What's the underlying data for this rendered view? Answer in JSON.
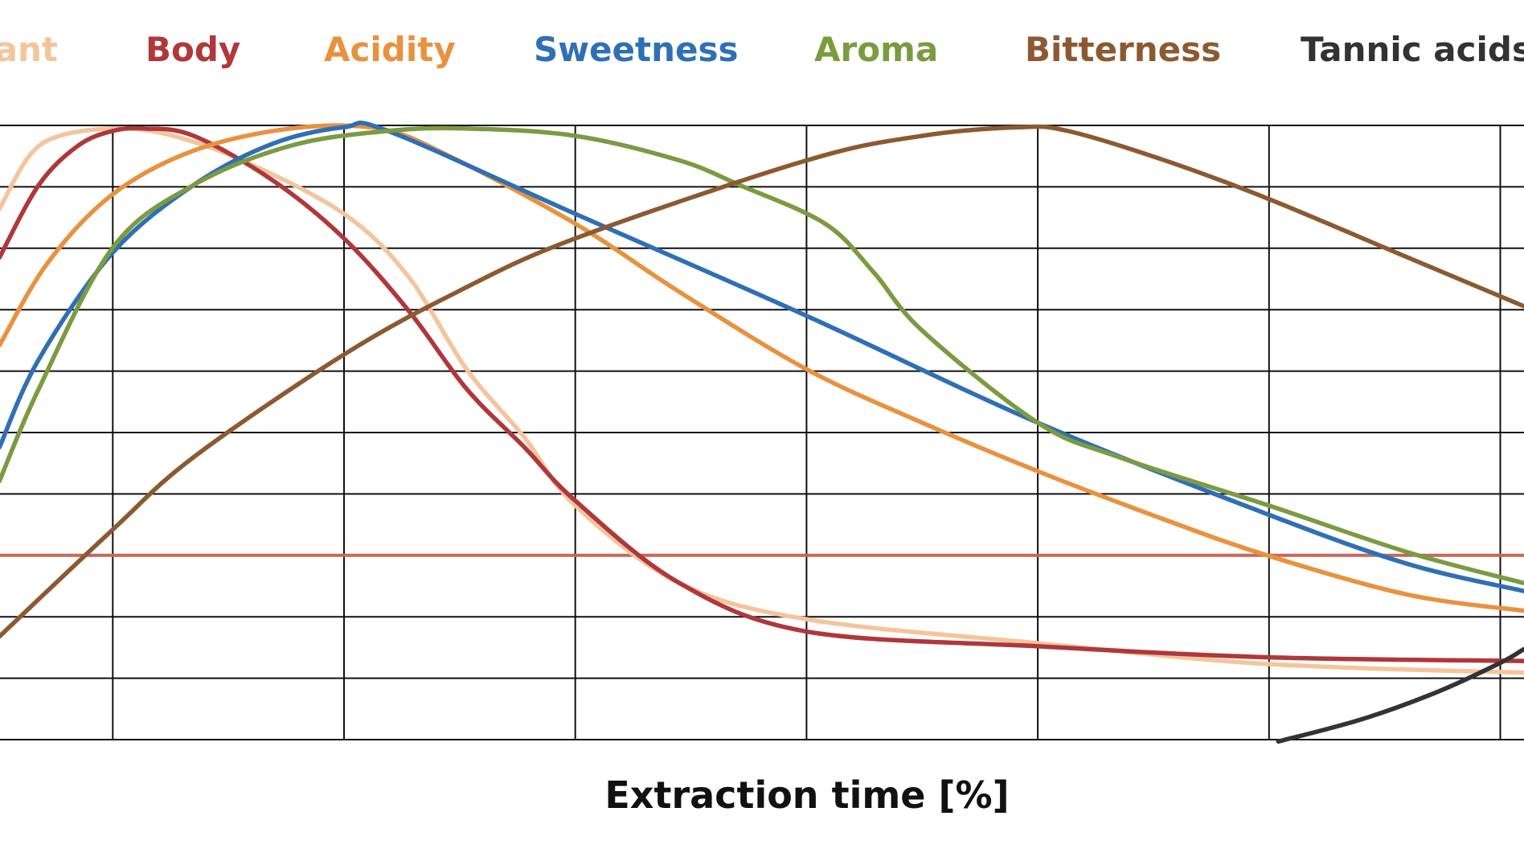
{
  "chart_data": {
    "type": "line",
    "title": "",
    "xlabel": "Extraction time [%]",
    "ylabel": "",
    "xlim": [
      5.1,
      71.0
    ],
    "ylim": [
      0,
      100
    ],
    "grid": true,
    "legend_placement": "top",
    "reference_line": {
      "y": 30,
      "color": "#c4695d"
    },
    "series": [
      {
        "name": "Fragrant",
        "color": "#f4c59c",
        "points": [
          [
            5.1,
            86.4
          ],
          [
            6.4,
            95.1
          ],
          [
            7.7,
            98.3
          ],
          [
            10,
            99.5
          ],
          [
            12.3,
            98.6
          ],
          [
            15.6,
            94.3
          ],
          [
            20,
            85.6
          ],
          [
            22.8,
            75.3
          ],
          [
            25.3,
            60.3
          ],
          [
            27.8,
            49.2
          ],
          [
            30,
            38.1
          ],
          [
            34.5,
            25.5
          ],
          [
            40,
            19.6
          ],
          [
            50,
            15.7
          ],
          [
            60,
            12.3
          ],
          [
            71,
            10.9
          ]
        ]
      },
      {
        "name": "Body",
        "color": "#b0373a",
        "points": [
          [
            5.1,
            78.5
          ],
          [
            6.8,
            90.3
          ],
          [
            8.5,
            96.7
          ],
          [
            10,
            99.1
          ],
          [
            11.4,
            99.5
          ],
          [
            13.5,
            98.3
          ],
          [
            16.9,
            91.1
          ],
          [
            20,
            81.6
          ],
          [
            22.8,
            69.8
          ],
          [
            25.3,
            57.1
          ],
          [
            27.8,
            47.6
          ],
          [
            30,
            38.9
          ],
          [
            34.5,
            25.5
          ],
          [
            40,
            17.6
          ],
          [
            50,
            15.2
          ],
          [
            60,
            13.4
          ],
          [
            71,
            12.8
          ]
        ]
      },
      {
        "name": "Acidity",
        "color": "#e8923f",
        "points": [
          [
            5.1,
            64.2
          ],
          [
            7.2,
            77.7
          ],
          [
            10,
            88.8
          ],
          [
            13.5,
            95.9
          ],
          [
            17.7,
            99.5
          ],
          [
            21.5,
            99.5
          ],
          [
            24.5,
            95.1
          ],
          [
            30,
            84.0
          ],
          [
            34.5,
            72.9
          ],
          [
            40,
            60.3
          ],
          [
            45,
            51.6
          ],
          [
            50,
            43.7
          ],
          [
            55.5,
            35.8
          ],
          [
            60,
            29.9
          ],
          [
            66,
            23.6
          ],
          [
            71,
            21.0
          ]
        ]
      },
      {
        "name": "Sweetness",
        "color": "#2f6fb6",
        "points": [
          [
            5.1,
            47.6
          ],
          [
            6.8,
            61.9
          ],
          [
            10,
            79.3
          ],
          [
            13.5,
            90.3
          ],
          [
            16.9,
            97.0
          ],
          [
            20,
            99.7
          ],
          [
            21.9,
            99.1
          ],
          [
            30,
            85.6
          ],
          [
            40,
            69.0
          ],
          [
            50,
            51.6
          ],
          [
            60,
            36.6
          ],
          [
            66,
            28.6
          ],
          [
            71,
            24.2
          ]
        ]
      },
      {
        "name": "Aroma",
        "color": "#7b9b41",
        "points": [
          [
            5.1,
            42.1
          ],
          [
            6.8,
            57.1
          ],
          [
            10,
            80.1
          ],
          [
            13.5,
            90.3
          ],
          [
            17.7,
            96.7
          ],
          [
            21.9,
            99.1
          ],
          [
            25.3,
            99.5
          ],
          [
            30,
            98.3
          ],
          [
            34.5,
            94.3
          ],
          [
            37.1,
            90.3
          ],
          [
            40.8,
            84.0
          ],
          [
            42.9,
            76.1
          ],
          [
            45,
            66.6
          ],
          [
            50,
            51.6
          ],
          [
            53.5,
            46.0
          ],
          [
            60,
            38.1
          ],
          [
            66,
            30.5
          ],
          [
            71,
            25.5
          ]
        ]
      },
      {
        "name": "Bitterness",
        "color": "#8c5a30",
        "points": [
          [
            5.1,
            16.8
          ],
          [
            10,
            34.2
          ],
          [
            13.5,
            46.0
          ],
          [
            20,
            62.7
          ],
          [
            24.9,
            72.9
          ],
          [
            30,
            81.6
          ],
          [
            40,
            94.3
          ],
          [
            45,
            98.3
          ],
          [
            49.2,
            99.7
          ],
          [
            51.3,
            99.1
          ],
          [
            55.5,
            94.3
          ],
          [
            60,
            88.0
          ],
          [
            66,
            78.5
          ],
          [
            71,
            70.6
          ]
        ]
      },
      {
        "name": "Tannic  acids",
        "color": "#333333",
        "points": [
          [
            60.4,
            -0.3
          ],
          [
            64,
            3.3
          ],
          [
            67.3,
            7.8
          ],
          [
            70,
            12.5
          ],
          [
            71,
            14.7
          ]
        ]
      }
    ]
  }
}
